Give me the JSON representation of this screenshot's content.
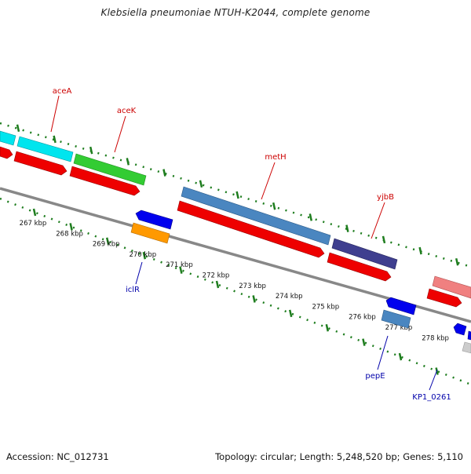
{
  "title": "Klebsiella pneumoniae NTUH-K2044, complete genome",
  "footer": {
    "accession": "Accession: NC_012731",
    "summary": "Topology: circular; Length: 5,248,520 bp; Genes: 5,110"
  },
  "colors": {
    "backbone": "#888888",
    "tick": "#1e7d1e",
    "gene_label_forward": "#cc0000",
    "gene_label_reverse": "#0000aa",
    "cds": "#ee0000",
    "aceA": "#00e5ee",
    "aceK": "#33cc33",
    "metH": "#4a86c0",
    "yjbB": "#3f3f8f",
    "iclR": "#0000ee",
    "iclR_feature": "#ff9900",
    "pepE": "#0000ee",
    "pepE_feature": "#4a86c0",
    "pink_feature": "#f08080",
    "grey_feature": "#cccccc"
  },
  "scale": {
    "labels": [
      "267 kbp",
      "268 kbp",
      "269 kbp",
      "270 kbp",
      "271 kbp",
      "272 kbp",
      "273 kbp",
      "274 kbp",
      "275 kbp",
      "276 kbp",
      "277 kbp",
      "278 kbp"
    ]
  },
  "gene_labels": {
    "aceA": "aceA",
    "aceK": "aceK",
    "metH": "metH",
    "yjbB": "yjbB",
    "iclR": "iclR",
    "pepE": "pepE",
    "KP1_0261": "KP1_0261"
  }
}
